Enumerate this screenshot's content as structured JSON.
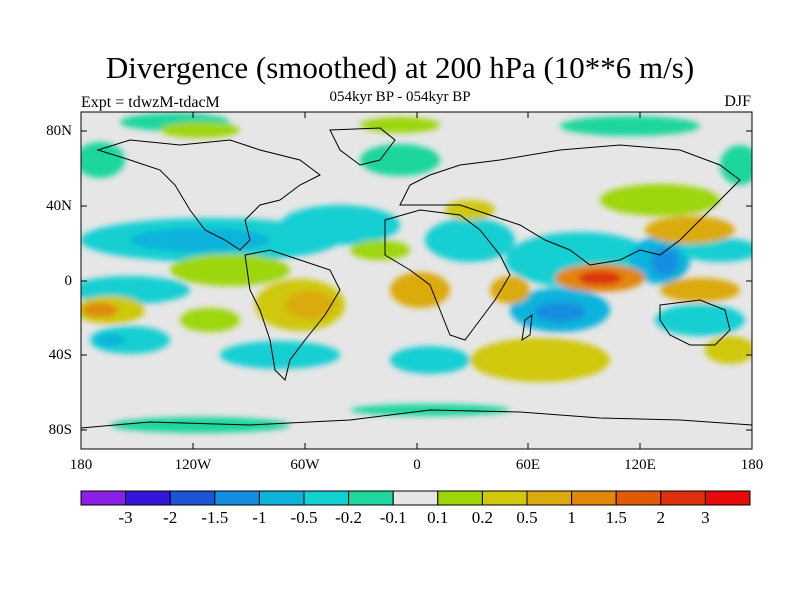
{
  "map": {
    "title": "Divergence (smoothed) at 200 hPa (10**6 m/s)",
    "subtitle": "054kyr BP - 054kyr BP",
    "experiment": "Expt = tdwzM-tdacM",
    "season": "DJF",
    "lat_ticks": [
      "80N",
      "40N",
      "0",
      "40S",
      "80S"
    ],
    "lon_ticks": [
      "180",
      "120W",
      "60W",
      "0",
      "60E",
      "120E",
      "180"
    ]
  },
  "colorbar": {
    "labels": [
      "-3",
      "-2",
      "-1.5",
      "-1",
      "-0.5",
      "-0.2",
      "-0.1",
      "0.1",
      "0.2",
      "0.5",
      "1",
      "1.5",
      "2",
      "3"
    ],
    "colors": [
      "#8a1fe6",
      "#3316d9",
      "#1c55d6",
      "#148ee0",
      "#0eb3dc",
      "#12cfd2",
      "#1ed69e",
      "#e6e6e6",
      "#9ed60a",
      "#cfc80c",
      "#dbaa0b",
      "#e0870a",
      "#e05a08",
      "#de300a",
      "#e60a0a"
    ]
  }
}
